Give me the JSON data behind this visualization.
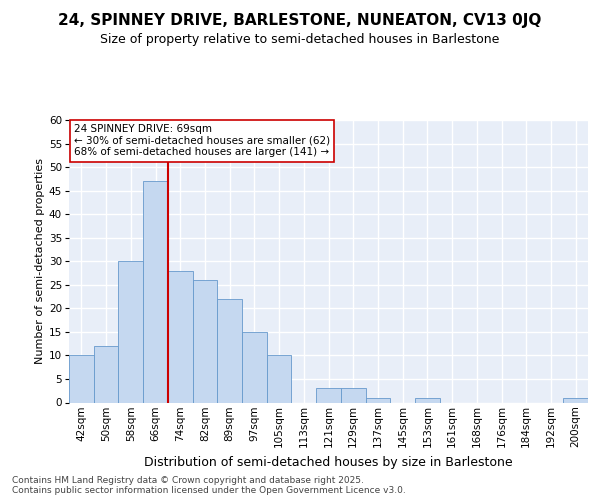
{
  "title": "24, SPINNEY DRIVE, BARLESTONE, NUNEATON, CV13 0JQ",
  "subtitle": "Size of property relative to semi-detached houses in Barlestone",
  "xlabel": "Distribution of semi-detached houses by size in Barlestone",
  "ylabel": "Number of semi-detached properties",
  "categories": [
    "42sqm",
    "50sqm",
    "58sqm",
    "66sqm",
    "74sqm",
    "82sqm",
    "89sqm",
    "97sqm",
    "105sqm",
    "113sqm",
    "121sqm",
    "129sqm",
    "137sqm",
    "145sqm",
    "153sqm",
    "161sqm",
    "168sqm",
    "176sqm",
    "184sqm",
    "192sqm",
    "200sqm"
  ],
  "values": [
    10,
    12,
    30,
    47,
    28,
    26,
    22,
    15,
    10,
    0,
    3,
    3,
    1,
    0,
    1,
    0,
    0,
    0,
    0,
    0,
    1
  ],
  "bar_color": "#c5d8f0",
  "bar_edge_color": "#6699cc",
  "background_color": "#e8eef8",
  "grid_color": "#ffffff",
  "vline_x_index": 3.5,
  "vline_color": "#cc0000",
  "annotation_text": "24 SPINNEY DRIVE: 69sqm\n← 30% of semi-detached houses are smaller (62)\n68% of semi-detached houses are larger (141) →",
  "annotation_box_color": "#ffffff",
  "annotation_box_edge": "#cc0000",
  "footer": "Contains HM Land Registry data © Crown copyright and database right 2025.\nContains public sector information licensed under the Open Government Licence v3.0.",
  "ylim": [
    0,
    60
  ],
  "yticks": [
    0,
    5,
    10,
    15,
    20,
    25,
    30,
    35,
    40,
    45,
    50,
    55,
    60
  ],
  "title_fontsize": 11,
  "subtitle_fontsize": 9,
  "xlabel_fontsize": 9,
  "ylabel_fontsize": 8,
  "tick_fontsize": 7.5,
  "footer_fontsize": 6.5,
  "annot_fontsize": 7.5
}
